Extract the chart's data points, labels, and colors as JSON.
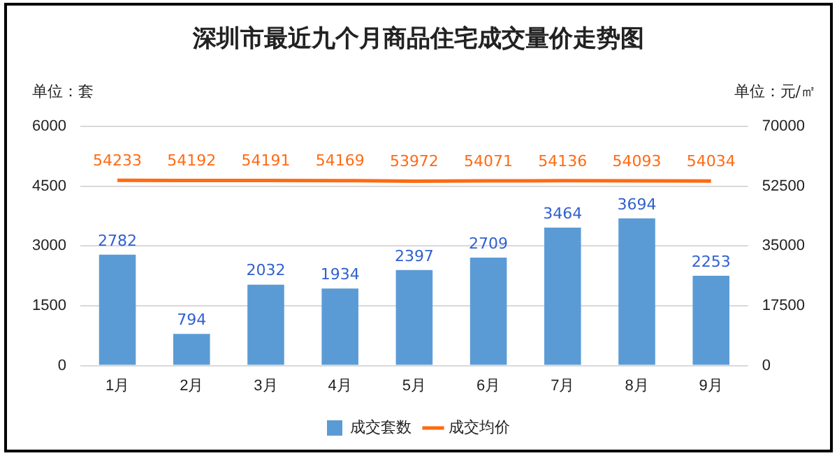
{
  "chart_data": {
    "type": "bar",
    "title": "深圳市最近九个月商品住宅成交量价走势图",
    "ylabel": "单位：套",
    "y2label": "单位：元/㎡",
    "categories": [
      "1月",
      "2月",
      "3月",
      "4月",
      "5月",
      "6月",
      "7月",
      "8月",
      "9月"
    ],
    "series": [
      {
        "name": "成交套数",
        "color": "#5b9bd5",
        "values": [
          2782,
          794,
          2032,
          1934,
          2397,
          2709,
          3464,
          3694,
          2253
        ]
      },
      {
        "name": "成交均价",
        "type": "line",
        "axis": "y2",
        "color": "#ff6a13",
        "marker": "none",
        "values": [
          54233,
          54192,
          54191,
          54169,
          53972,
          54071,
          54136,
          54093,
          54034
        ]
      }
    ],
    "ylim": [
      0,
      6000
    ],
    "yticks": [
      0,
      1500,
      3000,
      4500,
      6000
    ],
    "y2lim": [
      0,
      70000
    ],
    "y2ticks": [
      0,
      17500,
      35000,
      52500,
      70000
    ],
    "grid": "y",
    "legend": "bottom",
    "data_labels": true
  }
}
